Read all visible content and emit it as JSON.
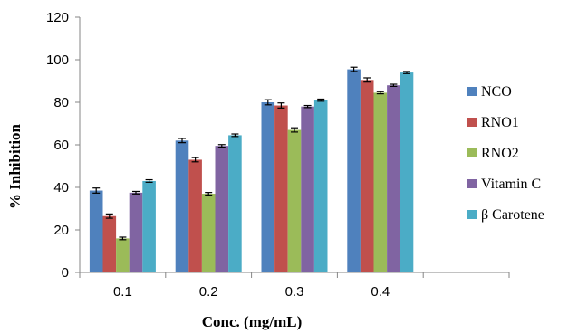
{
  "chart_data": {
    "type": "bar",
    "categories": [
      "0.1",
      "0.2",
      "0.3",
      "0.4",
      ""
    ],
    "series": [
      {
        "name": "NCO",
        "color": "#4F81BD",
        "values": [
          38.5,
          62,
          80,
          95.5,
          null
        ],
        "errors": [
          1.2,
          1.0,
          1.2,
          1.0,
          null
        ]
      },
      {
        "name": "RNO1",
        "color": "#C0504D",
        "values": [
          26.5,
          53,
          78.5,
          90.5,
          null
        ],
        "errors": [
          1.0,
          1.0,
          1.2,
          1.0,
          null
        ]
      },
      {
        "name": "RNO2",
        "color": "#9BBB59",
        "values": [
          16,
          37,
          67,
          84.5,
          null
        ],
        "errors": [
          0.6,
          0.6,
          1.0,
          0.5,
          null
        ]
      },
      {
        "name": "Vitamin C",
        "color": "#8064A2",
        "values": [
          37.5,
          59.5,
          78,
          88,
          null
        ],
        "errors": [
          0.6,
          0.6,
          0.5,
          0.5,
          null
        ]
      },
      {
        "name": "β Carotene",
        "color": "#4BACC6",
        "values": [
          43,
          64.5,
          81,
          94,
          null
        ],
        "errors": [
          0.6,
          0.6,
          0.5,
          0.5,
          null
        ]
      }
    ],
    "xlabel": "Conc. (mg/mL)",
    "ylabel": "% Inhibition",
    "ylim": [
      0,
      120
    ],
    "yticks": [
      "0",
      "20",
      "40",
      "60",
      "80",
      "100",
      "120"
    ],
    "grid": false,
    "legend": "right"
  }
}
